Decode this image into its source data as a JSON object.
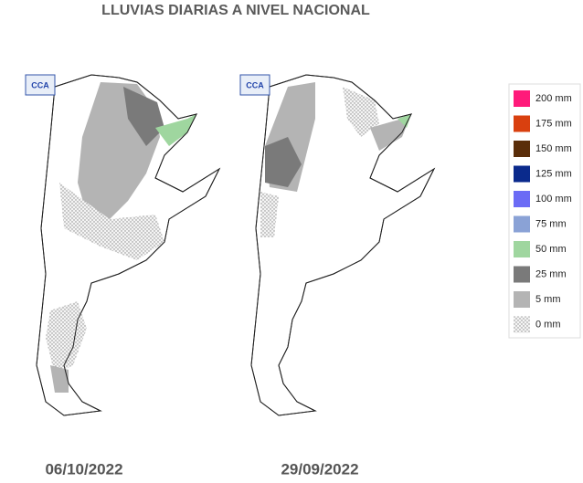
{
  "title": "LLUVIAS DIARIAS A NIVEL NACIONAL",
  "maps": [
    {
      "date": "06/10/2022",
      "logo": "CCA"
    },
    {
      "date": "29/09/2022",
      "logo": "CCA"
    }
  ],
  "legend": [
    {
      "label": "200 mm",
      "color": "#ff1a7a"
    },
    {
      "label": "175 mm",
      "color": "#d9400f"
    },
    {
      "label": "150 mm",
      "color": "#5a2e0a"
    },
    {
      "label": "125 mm",
      "color": "#0a2a8c"
    },
    {
      "label": "100 mm",
      "color": "#6b6bf5"
    },
    {
      "label": "75 mm",
      "color": "#8aa2d6"
    },
    {
      "label": "50 mm",
      "color": "#9fd69f"
    },
    {
      "label": "25 mm",
      "color": "#7a7a7a"
    },
    {
      "label": "5 mm",
      "color": "#b4b4b4"
    },
    {
      "label": "0 mm",
      "color": "#ffffff",
      "pattern": "dots"
    }
  ]
}
